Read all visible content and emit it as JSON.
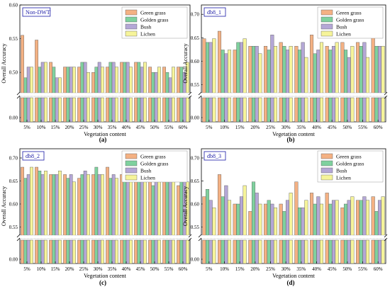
{
  "figure": {
    "colors": {
      "Green grass": "#f4b183",
      "Golden grass": "#7fd19e",
      "Bush": "#b4a7d6",
      "Lichen": "#f6f49a"
    }
  },
  "chart_data": [
    {
      "type": "bar",
      "title": "Non-DWT",
      "caption": "(a)",
      "xlabel": "Vegetation content",
      "ylabel": "Overall Accuracy",
      "categories": [
        "5%",
        "10%",
        "15%",
        "20%",
        "25%",
        "30%",
        "35%",
        "40%",
        "45%",
        "50%",
        "55%",
        "60%"
      ],
      "yticks": [
        "0.00",
        "0.50",
        "0.55",
        "0.60"
      ],
      "ylim_upper": [
        0.475,
        0.6
      ],
      "legend_position": "top-right",
      "series": [
        {
          "name": "Green grass",
          "values": [
            0.555,
            0.548,
            0.515,
            0.508,
            0.508,
            0.5,
            0.508,
            0.515,
            0.515,
            0.508,
            0.508,
            0.508
          ]
        },
        {
          "name": "Golden grass",
          "values": [
            0.492,
            0.508,
            0.508,
            0.508,
            0.515,
            0.508,
            0.515,
            0.515,
            0.515,
            0.5,
            0.5,
            0.508
          ]
        },
        {
          "name": "Bush",
          "values": [
            0.508,
            0.515,
            0.492,
            0.508,
            0.515,
            0.515,
            0.515,
            0.515,
            0.508,
            0.5,
            0.492,
            0.5
          ]
        },
        {
          "name": "Lichen",
          "values": [
            0.508,
            0.515,
            0.492,
            0.508,
            0.5,
            0.508,
            0.508,
            0.508,
            0.515,
            0.508,
            0.508,
            0.515
          ]
        }
      ]
    },
    {
      "type": "bar",
      "title": "db8_1",
      "caption": "(b)",
      "xlabel": "Vegetation content",
      "ylabel": "Overall Accuracy",
      "categories": [
        "5%",
        "10%",
        "15%",
        "20%",
        "25%",
        "30%",
        "35%",
        "40%",
        "45%",
        "50%",
        "55%",
        "60%"
      ],
      "yticks": [
        "0.00",
        "0.55",
        "0.60",
        "0.65",
        "0.70"
      ],
      "ylim_upper": [
        0.54,
        0.72
      ],
      "legend_position": "top-right",
      "series": [
        {
          "name": "Green grass",
          "values": [
            0.648,
            0.664,
            0.624,
            0.632,
            0.632,
            0.64,
            0.632,
            0.656,
            0.632,
            0.64,
            0.64,
            0.656
          ]
        },
        {
          "name": "Golden grass",
          "values": [
            0.64,
            0.624,
            0.64,
            0.632,
            0.624,
            0.632,
            0.624,
            0.616,
            0.624,
            0.624,
            0.632,
            0.632
          ]
        },
        {
          "name": "Bush",
          "values": [
            0.64,
            0.616,
            0.64,
            0.632,
            0.656,
            0.624,
            0.64,
            0.624,
            0.632,
            0.608,
            0.64,
            0.632
          ]
        },
        {
          "name": "Lichen",
          "values": [
            0.648,
            0.624,
            0.648,
            0.616,
            0.632,
            0.632,
            0.608,
            0.64,
            0.64,
            0.632,
            0.608,
            0.632
          ]
        }
      ]
    },
    {
      "type": "bar",
      "title": "db8_2",
      "caption": "(c)",
      "xlabel": "Vegetation content",
      "ylabel": "Overall Accuracy",
      "categories": [
        "5%",
        "10%",
        "15%",
        "20%",
        "25%",
        "30%",
        "35%",
        "40%",
        "45%",
        "50%",
        "55%",
        "60%"
      ],
      "yticks": [
        "0.00",
        "0.55",
        "0.60",
        "0.65",
        "0.70"
      ],
      "ylim_upper": [
        0.54,
        0.72
      ],
      "legend_position": "top-right",
      "series": [
        {
          "name": "Green grass",
          "values": [
            0.68,
            0.68,
            0.664,
            0.664,
            0.656,
            0.664,
            0.68,
            0.664,
            0.656,
            0.656,
            0.664,
            0.64
          ]
        },
        {
          "name": "Golden grass",
          "values": [
            0.656,
            0.672,
            0.664,
            0.656,
            0.664,
            0.68,
            0.656,
            0.664,
            0.664,
            0.64,
            0.68,
            0.648
          ]
        },
        {
          "name": "Bush",
          "values": [
            0.664,
            0.664,
            0.664,
            0.664,
            0.672,
            0.664,
            0.664,
            0.664,
            0.672,
            0.664,
            0.672,
            0.648
          ]
        },
        {
          "name": "Lichen",
          "values": [
            0.68,
            0.672,
            0.672,
            0.648,
            0.664,
            0.664,
            0.656,
            0.656,
            0.672,
            0.656,
            0.664,
            0.648
          ]
        }
      ]
    },
    {
      "type": "bar",
      "title": "db8_3",
      "caption": "(d)",
      "xlabel": "Vegetation content",
      "ylabel": "Overall Accuracy",
      "categories": [
        "5%",
        "10%",
        "15%",
        "20%",
        "25%",
        "30%",
        "35%",
        "40%",
        "45%",
        "50%",
        "55%",
        "60%"
      ],
      "yticks": [
        "0.00",
        "0.55",
        "0.60",
        "0.65",
        "0.70"
      ],
      "ylim_upper": [
        0.54,
        0.72
      ],
      "legend_position": "top-right",
      "series": [
        {
          "name": "Green grass",
          "values": [
            0.616,
            0.664,
            0.6,
            0.584,
            0.6,
            0.6,
            0.648,
            0.624,
            0.624,
            0.592,
            0.608,
            0.616
          ]
        },
        {
          "name": "Golden grass",
          "values": [
            0.632,
            0.616,
            0.6,
            0.648,
            0.608,
            0.584,
            0.592,
            0.6,
            0.6,
            0.6,
            0.608,
            0.584
          ]
        },
        {
          "name": "Bush",
          "values": [
            0.608,
            0.64,
            0.616,
            0.624,
            0.6,
            0.608,
            0.592,
            0.616,
            0.608,
            0.608,
            0.616,
            0.608
          ]
        },
        {
          "name": "Lichen",
          "values": [
            0.592,
            0.608,
            0.64,
            0.6,
            0.592,
            0.624,
            0.608,
            0.6,
            0.608,
            0.616,
            0.608,
            0.616
          ]
        }
      ]
    }
  ]
}
